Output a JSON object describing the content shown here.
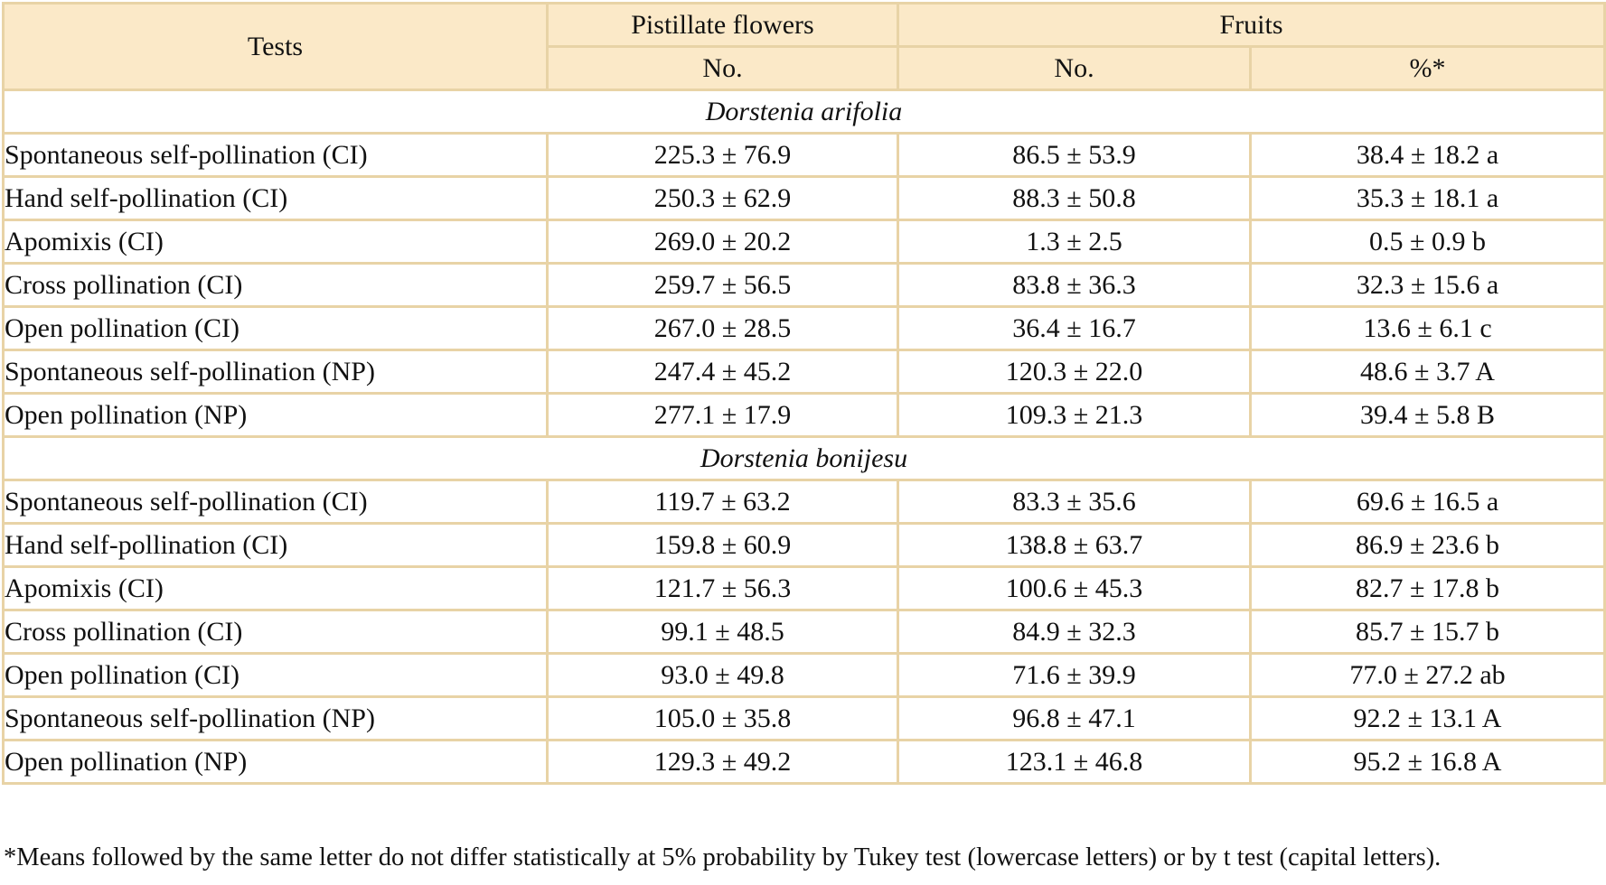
{
  "table": {
    "headers": {
      "tests": "Tests",
      "pistillate_flowers": "Pistillate flowers",
      "fruits": "Fruits",
      "pistillate_no": "No.",
      "fruits_no": "No.",
      "fruits_pct": "%*"
    },
    "groups": [
      {
        "species": "Dorstenia arifolia",
        "rows": [
          {
            "test": "Spontaneous self-pollination (CI)",
            "pistillate_no": "225.3 ± 76.9",
            "fruits_no": "86.5 ± 53.9",
            "fruits_pct": "38.4 ± 18.2 a"
          },
          {
            "test": "Hand self-pollination (CI)",
            "pistillate_no": "250.3 ± 62.9",
            "fruits_no": "88.3 ± 50.8",
            "fruits_pct": "35.3 ± 18.1 a"
          },
          {
            "test": "Apomixis (CI)",
            "pistillate_no": "269.0 ± 20.2",
            "fruits_no": "1.3 ± 2.5",
            "fruits_pct": "0.5 ± 0.9 b"
          },
          {
            "test": "Cross pollination (CI)",
            "pistillate_no": "259.7 ± 56.5",
            "fruits_no": "83.8 ± 36.3",
            "fruits_pct": "32.3 ± 15.6 a"
          },
          {
            "test": "Open pollination (CI)",
            "pistillate_no": "267.0 ± 28.5",
            "fruits_no": "36.4 ± 16.7",
            "fruits_pct": "13.6 ± 6.1 c"
          },
          {
            "test": "Spontaneous self-pollination (NP)",
            "pistillate_no": "247.4 ± 45.2",
            "fruits_no": "120.3 ± 22.0",
            "fruits_pct": "48.6 ± 3.7 A"
          },
          {
            "test": "Open pollination (NP)",
            "pistillate_no": "277.1 ± 17.9",
            "fruits_no": "109.3 ± 21.3",
            "fruits_pct": "39.4 ± 5.8 B"
          }
        ]
      },
      {
        "species": "Dorstenia bonijesu",
        "rows": [
          {
            "test": "Spontaneous self-pollination (CI)",
            "pistillate_no": "119.7 ± 63.2",
            "fruits_no": "83.3 ± 35.6",
            "fruits_pct": "69.6 ± 16.5 a"
          },
          {
            "test": "Hand self-pollination (CI)",
            "pistillate_no": "159.8 ± 60.9",
            "fruits_no": "138.8 ± 63.7",
            "fruits_pct": "86.9 ± 23.6 b"
          },
          {
            "test": "Apomixis (CI)",
            "pistillate_no": "121.7 ± 56.3",
            "fruits_no": "100.6 ± 45.3",
            "fruits_pct": "82.7 ± 17.8 b"
          },
          {
            "test": "Cross pollination (CI)",
            "pistillate_no": "99.1 ± 48.5",
            "fruits_no": "84.9 ± 32.3",
            "fruits_pct": "85.7 ± 15.7 b"
          },
          {
            "test": "Open pollination (CI)",
            "pistillate_no": "93.0 ± 49.8",
            "fruits_no": "71.6 ± 39.9",
            "fruits_pct": "77.0 ± 27.2 ab"
          },
          {
            "test": "Spontaneous self-pollination (NP)",
            "pistillate_no": "105.0 ± 35.8",
            "fruits_no": "96.8 ± 47.1",
            "fruits_pct": "92.2 ± 13.1 A"
          },
          {
            "test": "Open pollination (NP)",
            "pistillate_no": "129.3 ± 49.2",
            "fruits_no": "123.1 ± 46.8",
            "fruits_pct": "95.2 ± 16.8 A"
          }
        ]
      }
    ]
  },
  "footnote": "*Means followed by the same letter do not differ statistically at 5% probability by Tukey test (lowercase letters) or by t test (capital letters).",
  "colors": {
    "header_background": "#fbe9c8",
    "border": "#e8d3a6"
  }
}
